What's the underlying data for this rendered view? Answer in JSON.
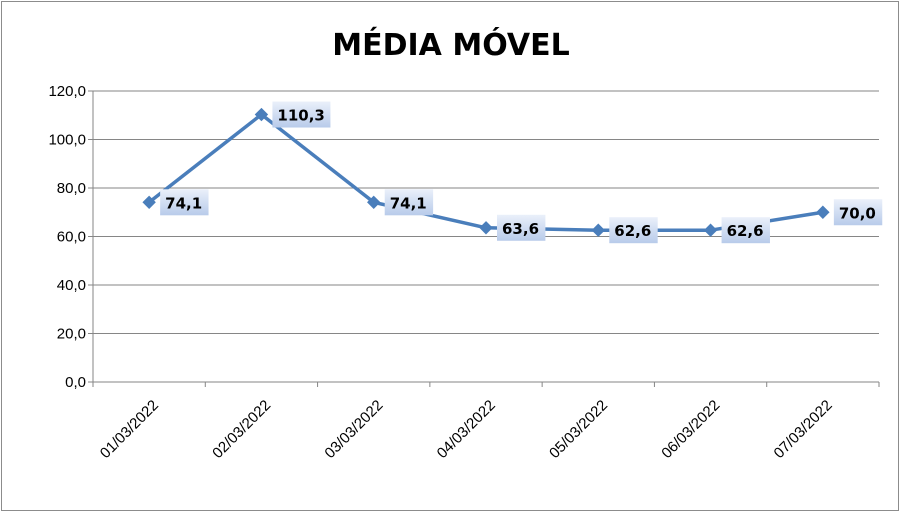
{
  "chart_data": {
    "type": "line",
    "title": "MÉDIA MÓVEL",
    "xlabel": "",
    "ylabel": "",
    "categories": [
      "01/03/2022",
      "02/03/2022",
      "03/03/2022",
      "04/03/2022",
      "05/03/2022",
      "06/03/2022",
      "07/03/2022"
    ],
    "series": [
      {
        "values": [
          74.1,
          110.3,
          74.1,
          63.6,
          62.6,
          62.6,
          70.0
        ],
        "labels": [
          "74,1",
          "110,3",
          "74,1",
          "63,6",
          "62,6",
          "62,6",
          "70,0"
        ],
        "color": "#4a7ebb",
        "marker": "diamond"
      }
    ],
    "ylim": [
      0,
      120
    ],
    "yticks": [
      0,
      20,
      40,
      60,
      80,
      100,
      120
    ],
    "ytick_labels": [
      "0,0",
      "20,0",
      "40,0",
      "60,0",
      "80,0",
      "100,0",
      "120,0"
    ],
    "grid": true,
    "legend": "none",
    "colors": {
      "line": "#4a7ebb",
      "gridline": "#868686",
      "label_box_light": "#eaf0fa",
      "label_box_dark": "#b8cbea",
      "frame": "#8c8c8c"
    }
  }
}
